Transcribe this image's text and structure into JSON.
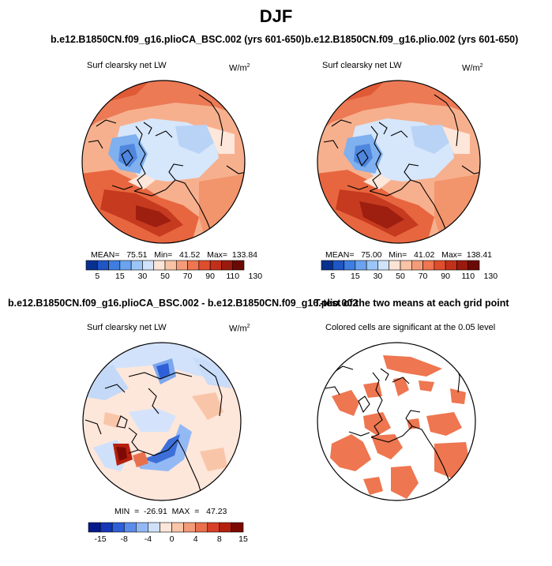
{
  "page_title": "DJF",
  "panels": {
    "top_left": {
      "title": "b.e12.B1850CN.f09_g16.plioCA_BSC.002 (yrs 601-650)",
      "subtitle": "Surf clearsky net LW",
      "units_base": "W/m",
      "units_exp": "2",
      "stats": "MEAN=   75.51   Min=   41.52   Max=  133.84"
    },
    "top_right": {
      "title": "b.e12.B1850CN.f09_g16.plio.002 (yrs 601-650)",
      "subtitle": "Surf clearsky net LW",
      "units_base": "W/m",
      "units_exp": "2",
      "stats": "MEAN=   75.00   Min=   41.02   Max=  138.41"
    },
    "bottom_left": {
      "title": "b.e12.B1850CN.f09_g16.plioCA_BSC.002 - b.e12.B1850CN.f09_g16.plio.002",
      "subtitle": "Surf clearsky net LW",
      "units_base": "W/m",
      "units_exp": "2",
      "stats": "MIN  =  -26.91  MAX  =   47.23"
    },
    "bottom_right": {
      "title": "T-test of the two means at each grid point",
      "subtitle": "Colored cells are significant at the 0.05 level"
    }
  },
  "colorbars": {
    "absolute": {
      "colors": [
        "#08308f",
        "#1f55c4",
        "#3d7ee0",
        "#6ba3ef",
        "#9cc5f7",
        "#d0e3fb",
        "#fbe3d6",
        "#f9c3a6",
        "#f49c79",
        "#ee7650",
        "#e04d2d",
        "#c2301a",
        "#9a1a0e",
        "#6b0a05"
      ],
      "labels": [
        "5",
        "15",
        "30",
        "50",
        "70",
        "90",
        "110",
        "130"
      ]
    },
    "difference": {
      "colors": [
        "#061a8c",
        "#1736b8",
        "#2f5fd8",
        "#5b8ceb",
        "#93b9f5",
        "#cfe0fb",
        "#fde6da",
        "#f9c5a8",
        "#f29b78",
        "#e9704c",
        "#d94028",
        "#b5200f",
        "#7c0a03"
      ],
      "labels": [
        "-15",
        "-8",
        "-4",
        "0",
        "4",
        "8",
        "15"
      ]
    }
  },
  "chart_data": [
    {
      "type": "heatmap",
      "projection": "north polar stereographic",
      "title": "b.e12.B1850CN.f09_g16.plioCA_BSC.002 (yrs 601-650)",
      "subtitle": "Surf clearsky net LW",
      "units": "W/m2",
      "stats": {
        "mean": 75.51,
        "min": 41.52,
        "max": 133.84
      },
      "colorbar_ticks": [
        5,
        15,
        30,
        50,
        70,
        90,
        110,
        130
      ]
    },
    {
      "type": "heatmap",
      "projection": "north polar stereographic",
      "title": "b.e12.B1850CN.f09_g16.plio.002 (yrs 601-650)",
      "subtitle": "Surf clearsky net LW",
      "units": "W/m2",
      "stats": {
        "mean": 75.0,
        "min": 41.02,
        "max": 138.41
      },
      "colorbar_ticks": [
        5,
        15,
        30,
        50,
        70,
        90,
        110,
        130
      ]
    },
    {
      "type": "heatmap",
      "projection": "north polar stereographic",
      "title": "b.e12.B1850CN.f09_g16.plioCA_BSC.002 - b.e12.B1850CN.f09_g16.plio.002",
      "subtitle": "Surf clearsky net LW",
      "units": "W/m2",
      "stats": {
        "min": -26.91,
        "max": 47.23
      },
      "colorbar_ticks": [
        -15,
        -8,
        -4,
        0,
        4,
        8,
        15
      ]
    },
    {
      "type": "heatmap",
      "projection": "north polar stereographic",
      "title": "T-test of the two means at each grid point",
      "subtitle": "Colored cells are significant at the 0.05 level",
      "significance_level": 0.05
    }
  ]
}
